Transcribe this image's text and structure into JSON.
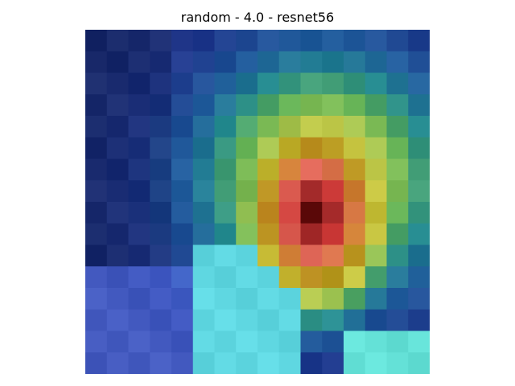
{
  "figure": {
    "title": "random - 4.0 - resnet56"
  },
  "image": {
    "subject": "pixelated-heatmap-overlay",
    "grid": {
      "rows": 16,
      "cols": 16
    },
    "palette": {
      "deep-blue": "#1e2a8a",
      "navy": "#1f3a6e",
      "teal": "#1f9a9a",
      "cyan": "#5fe0e6",
      "light-blue": "#6f8cff",
      "green": "#5fbf6a",
      "yellow": "#d8d84a",
      "olive": "#a8a21f",
      "orange": "#c98a2a",
      "salmon": "#e87a6a",
      "red": "#c0282a",
      "dark-red": "#5a0a0a"
    }
  }
}
